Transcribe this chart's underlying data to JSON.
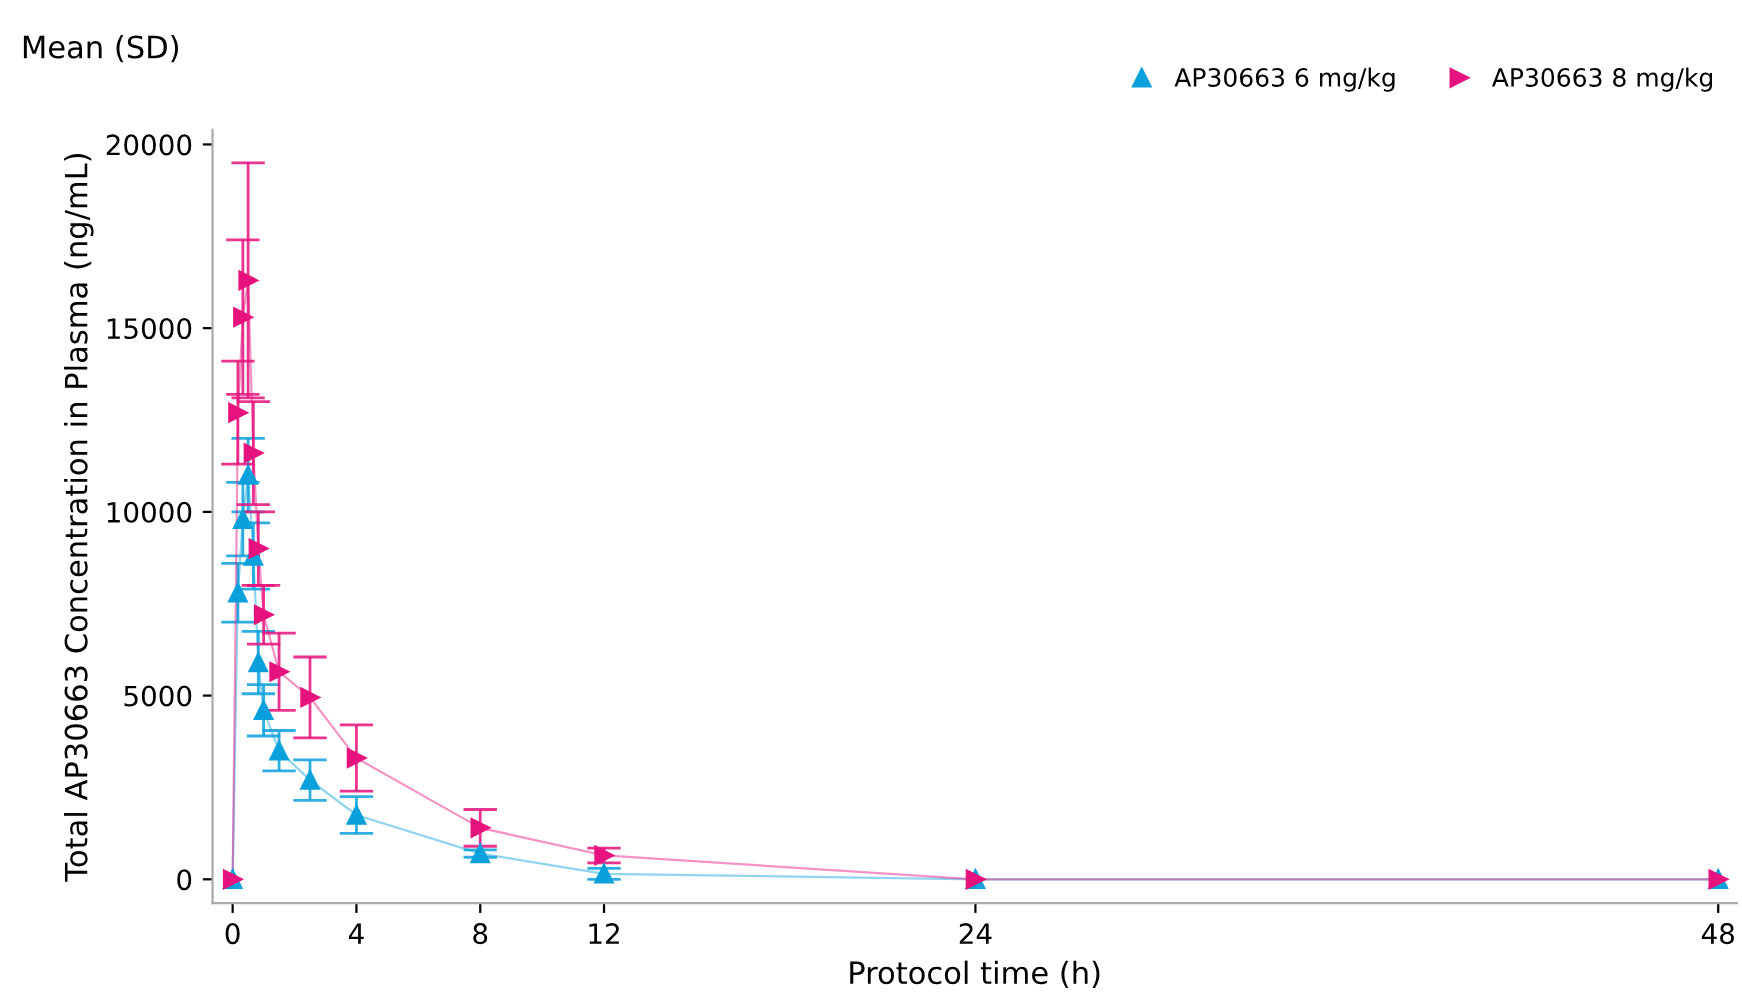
{
  "chart_data": {
    "type": "line",
    "xlabel": "Protocol time (h)",
    "ylabel": "Total AP30663 Concentration in Plasma (ng/mL)",
    "annotations": [
      "Mean (SD)"
    ],
    "xlim": [
      -0.65,
      48.6
    ],
    "xticks": [
      0,
      4,
      8,
      12,
      24,
      48
    ],
    "ylim": [
      -650,
      20400
    ],
    "yticks": [
      0,
      5000,
      10000,
      15000,
      20000
    ],
    "grid": false,
    "legend": "top right",
    "line_style": "solid",
    "series": [
      {
        "name": "AP30663 6 mg/kg",
        "color": "#0aa0dc",
        "marker": "triangle",
        "x": [
          0,
          0.17,
          0.33,
          0.5,
          0.67,
          0.83,
          1,
          1.5,
          2.5,
          4,
          8,
          12,
          24,
          48
        ],
        "values": [
          0,
          7800,
          9800,
          11000,
          8800,
          5900,
          4600,
          3500,
          2700,
          1750,
          700,
          150,
          0,
          0
        ],
        "errors": [
          null,
          800,
          1000,
          1000,
          900,
          850,
          700,
          550,
          550,
          500,
          100,
          150,
          null,
          null
        ]
      },
      {
        "name": "AP30663 8 mg/kg",
        "color": "#e6127d",
        "marker": "triangle_right",
        "x": [
          0,
          0.17,
          0.33,
          0.5,
          0.67,
          0.83,
          1,
          1.5,
          2.5,
          4,
          8,
          12,
          24,
          48
        ],
        "values": [
          0,
          12700,
          15300,
          16300,
          11600,
          9000,
          7200,
          5650,
          4950,
          3300,
          1400,
          650,
          0,
          0
        ],
        "errors": [
          null,
          1400,
          2100,
          3200,
          1400,
          1000,
          800,
          1050,
          1100,
          900,
          500,
          200,
          null,
          null
        ]
      }
    ]
  }
}
